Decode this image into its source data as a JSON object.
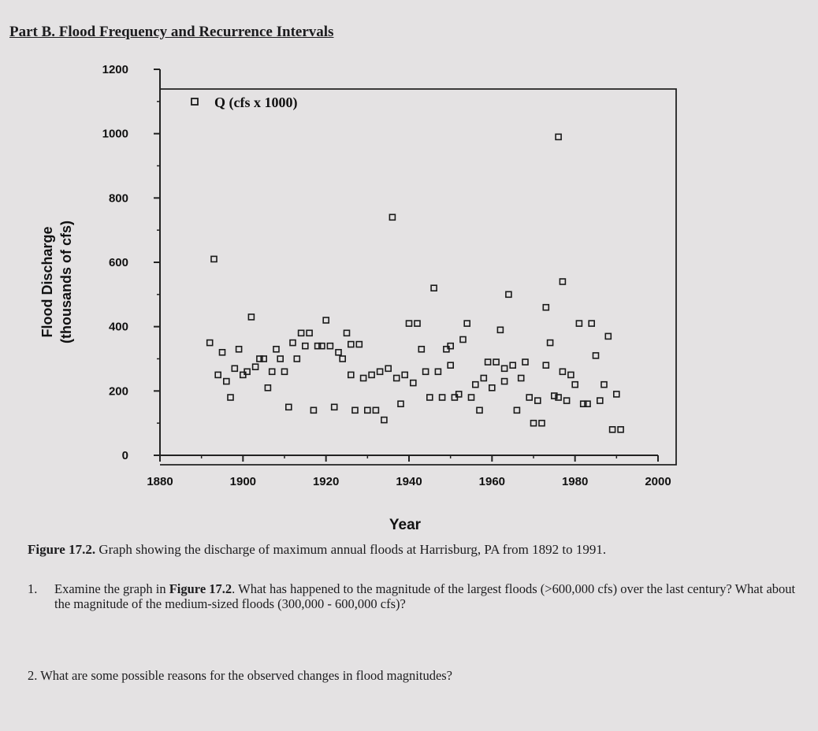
{
  "heading": "Part B. Flood Frequency and Recurrence Intervals",
  "caption": {
    "label": "Figure 17.2.",
    "text": "Graph showing the discharge of maximum annual floods at Harrisburg, PA from 1892 to 1991."
  },
  "questions": [
    {
      "number": "1.",
      "part1": "Examine the graph in ",
      "ref": "Figure 17.2",
      "part2": ". What has happened to the magnitude of the largest floods (>600,000 cfs) over the last century? What about the magnitude of the medium-sized floods (300,000 - 600,000 cfs)?"
    },
    {
      "number": "2.",
      "text": "What are some possible reasons for the observed changes in flood magnitudes?"
    }
  ],
  "chart_data": {
    "type": "scatter",
    "title": "",
    "xlabel": "Year",
    "ylabel": "Flood Discharge",
    "ylabel_sub": "(thousands of cfs)",
    "legend": "Q (cfs x 1000)",
    "legend_position": "top-left",
    "xlim": [
      1880,
      2000
    ],
    "ylim": [
      0,
      1200
    ],
    "x_ticks": [
      1880,
      1900,
      1920,
      1940,
      1960,
      1980,
      2000
    ],
    "y_ticks": [
      0,
      200,
      400,
      600,
      800,
      1000,
      1200
    ],
    "grid": false,
    "marker": "open-square",
    "series": [
      {
        "name": "Q (cfs x 1000)",
        "points": [
          [
            1892,
            350
          ],
          [
            1893,
            610
          ],
          [
            1894,
            250
          ],
          [
            1895,
            320
          ],
          [
            1896,
            230
          ],
          [
            1897,
            180
          ],
          [
            1898,
            270
          ],
          [
            1899,
            330
          ],
          [
            1900,
            250
          ],
          [
            1901,
            260
          ],
          [
            1902,
            430
          ],
          [
            1903,
            275
          ],
          [
            1904,
            300
          ],
          [
            1905,
            300
          ],
          [
            1906,
            210
          ],
          [
            1907,
            260
          ],
          [
            1908,
            330
          ],
          [
            1909,
            300
          ],
          [
            1910,
            260
          ],
          [
            1911,
            150
          ],
          [
            1912,
            350
          ],
          [
            1913,
            300
          ],
          [
            1914,
            380
          ],
          [
            1915,
            340
          ],
          [
            1916,
            380
          ],
          [
            1917,
            140
          ],
          [
            1918,
            340
          ],
          [
            1919,
            340
          ],
          [
            1920,
            420
          ],
          [
            1921,
            340
          ],
          [
            1922,
            150
          ],
          [
            1923,
            320
          ],
          [
            1924,
            300
          ],
          [
            1925,
            380
          ],
          [
            1926,
            345
          ],
          [
            1927,
            140
          ],
          [
            1928,
            345
          ],
          [
            1929,
            240
          ],
          [
            1930,
            140
          ],
          [
            1931,
            250
          ],
          [
            1932,
            140
          ],
          [
            1933,
            260
          ],
          [
            1934,
            110
          ],
          [
            1935,
            270
          ],
          [
            1936,
            740
          ],
          [
            1937,
            240
          ],
          [
            1938,
            160
          ],
          [
            1939,
            250
          ],
          [
            1940,
            410
          ],
          [
            1941,
            225
          ],
          [
            1942,
            410
          ],
          [
            1943,
            330
          ],
          [
            1944,
            260
          ],
          [
            1945,
            180
          ],
          [
            1946,
            520
          ],
          [
            1947,
            260
          ],
          [
            1948,
            180
          ],
          [
            1949,
            330
          ],
          [
            1950,
            340
          ],
          [
            1951,
            180
          ],
          [
            1952,
            190
          ],
          [
            1953,
            360
          ],
          [
            1954,
            410
          ],
          [
            1955,
            180
          ],
          [
            1956,
            220
          ],
          [
            1957,
            140
          ],
          [
            1958,
            240
          ],
          [
            1959,
            290
          ],
          [
            1960,
            210
          ],
          [
            1961,
            290
          ],
          [
            1962,
            390
          ],
          [
            1963,
            270
          ],
          [
            1964,
            500
          ],
          [
            1965,
            280
          ],
          [
            1966,
            140
          ],
          [
            1967,
            240
          ],
          [
            1968,
            290
          ],
          [
            1969,
            180
          ],
          [
            1970,
            100
          ],
          [
            1971,
            170
          ],
          [
            1972,
            100
          ],
          [
            1973,
            280
          ],
          [
            1974,
            350
          ],
          [
            1975,
            185
          ],
          [
            1976,
            180
          ],
          [
            1977,
            260
          ],
          [
            1978,
            170
          ],
          [
            1979,
            250
          ],
          [
            1980,
            220
          ],
          [
            1981,
            410
          ],
          [
            1982,
            160
          ],
          [
            1983,
            160
          ],
          [
            1984,
            410
          ],
          [
            1985,
            310
          ],
          [
            1986,
            170
          ],
          [
            1987,
            220
          ],
          [
            1988,
            370
          ],
          [
            1989,
            80
          ],
          [
            1990,
            190
          ],
          [
            1991,
            80
          ],
          [
            1973,
            460
          ],
          [
            1976,
            990
          ],
          [
            1977,
            540
          ],
          [
            1950,
            280
          ],
          [
            1963,
            230
          ],
          [
            1926,
            250
          ]
        ]
      }
    ]
  }
}
